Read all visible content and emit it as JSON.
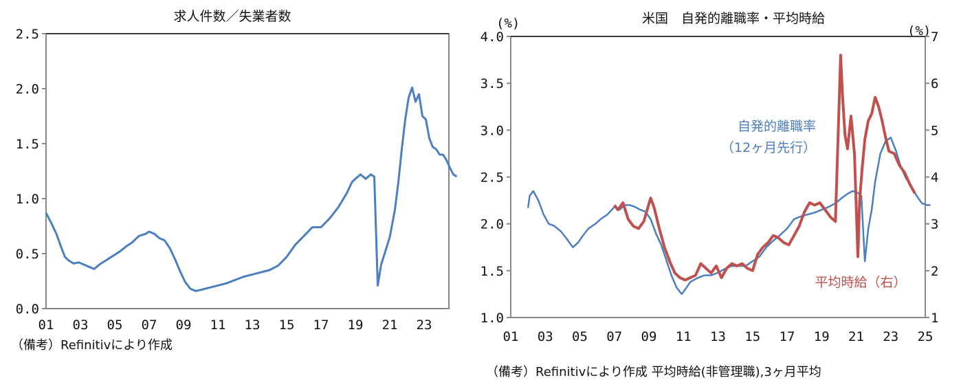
{
  "chart_data": [
    {
      "type": "line",
      "title": "求人件数／失業者数",
      "xlabel": "",
      "ylabel": "",
      "ylim": [
        0.0,
        2.5
      ],
      "yticks": [
        "0.0",
        "0.5",
        "1.0",
        "1.5",
        "2.0",
        "2.5"
      ],
      "xticks": [
        "01",
        "03",
        "05",
        "07",
        "09",
        "11",
        "13",
        "15",
        "17",
        "19",
        "21",
        "23"
      ],
      "xrange": [
        2001,
        2024.9
      ],
      "grid": false,
      "note": "（備考）Refinitivにより作成",
      "series": [
        {
          "name": "求人件数／失業者数",
          "color": "#4a7ebf",
          "x": [
            2001.0,
            2001.3,
            2001.6,
            2001.9,
            2002.1,
            2002.3,
            2002.6,
            2002.9,
            2003.2,
            2003.5,
            2003.8,
            2004.1,
            2004.5,
            2004.9,
            2005.3,
            2005.7,
            2006.0,
            2006.4,
            2006.8,
            2007.0,
            2007.3,
            2007.6,
            2007.9,
            2008.2,
            2008.5,
            2008.8,
            2009.1,
            2009.4,
            2009.7,
            2010.0,
            2010.5,
            2011.0,
            2011.5,
            2012.0,
            2012.5,
            2013.0,
            2013.5,
            2014.0,
            2014.5,
            2015.0,
            2015.5,
            2016.0,
            2016.5,
            2017.0,
            2017.5,
            2018.0,
            2018.5,
            2018.8,
            2019.0,
            2019.3,
            2019.6,
            2019.9,
            2020.1,
            2020.3,
            2020.5,
            2020.8,
            2021.0,
            2021.3,
            2021.5,
            2021.7,
            2021.9,
            2022.1,
            2022.3,
            2022.5,
            2022.7,
            2022.9,
            2023.1,
            2023.3,
            2023.5,
            2023.7,
            2023.9,
            2024.1,
            2024.3,
            2024.5,
            2024.7,
            2024.9
          ],
          "values": [
            0.87,
            0.78,
            0.68,
            0.55,
            0.47,
            0.44,
            0.41,
            0.42,
            0.4,
            0.38,
            0.36,
            0.4,
            0.44,
            0.48,
            0.52,
            0.57,
            0.6,
            0.66,
            0.68,
            0.7,
            0.68,
            0.64,
            0.62,
            0.55,
            0.45,
            0.34,
            0.24,
            0.18,
            0.16,
            0.17,
            0.19,
            0.21,
            0.23,
            0.26,
            0.29,
            0.31,
            0.33,
            0.35,
            0.39,
            0.47,
            0.58,
            0.66,
            0.74,
            0.74,
            0.82,
            0.92,
            1.05,
            1.15,
            1.18,
            1.22,
            1.18,
            1.22,
            1.2,
            0.21,
            0.4,
            0.55,
            0.65,
            0.9,
            1.15,
            1.45,
            1.72,
            1.92,
            2.01,
            1.88,
            1.95,
            1.75,
            1.72,
            1.55,
            1.47,
            1.45,
            1.4,
            1.4,
            1.35,
            1.28,
            1.22,
            1.2
          ]
        }
      ]
    },
    {
      "type": "line",
      "title": "米国　自発的離職率・平均時給",
      "xlabel": "",
      "ylabel_left": "(%)",
      "ylabel_right": "(%)",
      "ylim": [
        1.0,
        4.0
      ],
      "ylim_right": [
        1,
        7
      ],
      "yticks": [
        "1.0",
        "1.5",
        "2.0",
        "2.5",
        "3.0",
        "3.5",
        "4.0"
      ],
      "yticks_right": [
        "1",
        "2",
        "3",
        "4",
        "5",
        "6",
        "7"
      ],
      "xticks": [
        "01",
        "03",
        "05",
        "07",
        "09",
        "11",
        "13",
        "15",
        "17",
        "19",
        "21",
        "23",
        "25"
      ],
      "xrange": [
        2001,
        2025
      ],
      "grid": false,
      "note": "（備考）Refinitivにより作成 平均時給(非管理職),3ヶ月平均",
      "series": [
        {
          "name": "自発的離職率（12ヶ月先行）",
          "axis": "left",
          "color": "#4a7ebf",
          "x": [
            2002.0,
            2002.1,
            2002.3,
            2002.6,
            2002.9,
            2003.2,
            2003.5,
            2003.9,
            2004.2,
            2004.6,
            2004.9,
            2005.2,
            2005.5,
            2005.9,
            2006.2,
            2006.6,
            2007.0,
            2007.3,
            2007.6,
            2007.9,
            2008.2,
            2008.5,
            2008.8,
            2009.1,
            2009.4,
            2009.7,
            2010.0,
            2010.3,
            2010.6,
            2010.9,
            2011.1,
            2011.4,
            2011.8,
            2012.2,
            2012.6,
            2013.0,
            2013.4,
            2013.8,
            2014.2,
            2014.6,
            2015.0,
            2015.4,
            2015.8,
            2016.2,
            2016.6,
            2017.0,
            2017.4,
            2017.8,
            2018.2,
            2018.6,
            2019.0,
            2019.4,
            2019.8,
            2020.2,
            2020.5,
            2020.8,
            2021.1,
            2021.3,
            2021.5,
            2021.7,
            2021.9,
            2022.1,
            2022.4,
            2022.7,
            2023.0,
            2023.3,
            2023.6,
            2023.9,
            2024.2,
            2024.5,
            2024.8,
            2025.1,
            2025.3
          ],
          "values": [
            2.17,
            2.3,
            2.35,
            2.25,
            2.1,
            2.0,
            1.98,
            1.92,
            1.85,
            1.75,
            1.8,
            1.88,
            1.95,
            2.0,
            2.05,
            2.1,
            2.18,
            2.15,
            2.2,
            2.2,
            2.18,
            2.15,
            2.13,
            2.05,
            1.9,
            1.78,
            1.62,
            1.45,
            1.32,
            1.25,
            1.3,
            1.38,
            1.42,
            1.45,
            1.45,
            1.48,
            1.52,
            1.55,
            1.55,
            1.55,
            1.6,
            1.65,
            1.75,
            1.82,
            1.88,
            1.95,
            2.05,
            2.08,
            2.1,
            2.12,
            2.15,
            2.18,
            2.22,
            2.28,
            2.32,
            2.35,
            2.33,
            2.3,
            1.6,
            1.95,
            2.15,
            2.45,
            2.75,
            2.88,
            2.92,
            2.78,
            2.6,
            2.48,
            2.4,
            2.3,
            2.22,
            2.2,
            2.2
          ]
        },
        {
          "name": "平均時給（右）",
          "axis": "right",
          "color": "#c0504d",
          "x": [
            2007.0,
            2007.2,
            2007.5,
            2007.8,
            2008.1,
            2008.4,
            2008.7,
            2008.9,
            2009.1,
            2009.3,
            2009.6,
            2009.9,
            2010.2,
            2010.5,
            2010.8,
            2011.1,
            2011.4,
            2011.7,
            2012.0,
            2012.3,
            2012.6,
            2012.9,
            2013.2,
            2013.5,
            2013.8,
            2014.1,
            2014.4,
            2014.7,
            2015.0,
            2015.3,
            2015.6,
            2015.9,
            2016.2,
            2016.5,
            2016.8,
            2017.1,
            2017.4,
            2017.7,
            2018.0,
            2018.3,
            2018.6,
            2018.9,
            2019.2,
            2019.5,
            2019.8,
            2020.1,
            2020.2,
            2020.35,
            2020.5,
            2020.7,
            2020.9,
            2021.1,
            2021.2,
            2021.35,
            2021.5,
            2021.7,
            2021.9,
            2022.1,
            2022.3,
            2022.5,
            2022.7,
            2022.9,
            2023.2,
            2023.5,
            2023.8,
            2024.1,
            2024.4
          ],
          "values": [
            3.4,
            3.3,
            3.45,
            3.1,
            2.95,
            2.9,
            3.05,
            3.3,
            3.55,
            3.35,
            2.9,
            2.5,
            2.2,
            1.95,
            1.85,
            1.8,
            1.85,
            1.9,
            2.15,
            2.05,
            1.95,
            2.1,
            1.85,
            2.05,
            2.15,
            2.1,
            2.15,
            2.05,
            2.0,
            2.35,
            2.5,
            2.6,
            2.75,
            2.7,
            2.6,
            2.55,
            2.75,
            2.95,
            3.25,
            3.45,
            3.4,
            3.45,
            3.3,
            3.15,
            3.05,
            6.6,
            5.8,
            4.9,
            4.6,
            5.3,
            4.5,
            2.3,
            3.5,
            4.2,
            4.8,
            5.2,
            5.35,
            5.7,
            5.5,
            5.2,
            4.85,
            4.55,
            4.5,
            4.25,
            4.1,
            3.85,
            3.65
          ]
        }
      ],
      "annotations": [
        {
          "text": "自発的離職率",
          "color": "#4a7ebf"
        },
        {
          "text": "（12ヶ月先行）",
          "color": "#4a7ebf"
        },
        {
          "text": "平均時給（右）",
          "color": "#c0504d"
        }
      ]
    }
  ]
}
